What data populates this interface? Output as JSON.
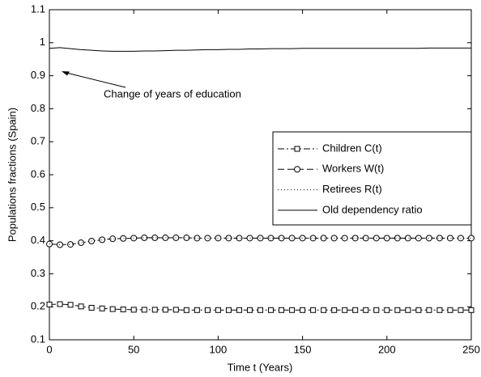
{
  "chart_data": {
    "type": "line",
    "xlabel": "Time t (Years)",
    "ylabel": "Populations fractions (Spain)",
    "annotation": "Change of years of education",
    "xlim": [
      0,
      250
    ],
    "xticks": [
      0,
      50,
      100,
      150,
      200,
      250
    ],
    "ylim": [
      0.1,
      1.1
    ],
    "yticks": [
      0.1,
      0.2,
      0.3,
      0.4,
      0.5,
      0.6,
      0.7,
      0.8,
      0.9,
      1,
      1.1
    ],
    "legend": "upper right",
    "x": [
      0,
      6.25,
      12.5,
      18.75,
      25,
      31.25,
      37.5,
      43.75,
      50,
      56.25,
      62.5,
      68.75,
      75,
      81.25,
      87.5,
      93.75,
      100,
      106.25,
      112.5,
      118.75,
      125,
      131.25,
      137.5,
      143.75,
      150,
      156.25,
      162.5,
      168.75,
      175,
      181.25,
      187.5,
      193.75,
      200,
      206.25,
      212.5,
      218.75,
      225,
      231.25,
      237.5,
      243.75,
      250
    ],
    "series": [
      {
        "name": "Children C(t)",
        "color": "#000000",
        "dash": "dashdot",
        "marker": "square",
        "values": [
          0.207,
          0.208,
          0.206,
          0.201,
          0.197,
          0.195,
          0.193,
          0.192,
          0.191,
          0.191,
          0.191,
          0.191,
          0.191,
          0.19,
          0.19,
          0.19,
          0.19,
          0.19,
          0.19,
          0.19,
          0.19,
          0.19,
          0.19,
          0.19,
          0.19,
          0.19,
          0.19,
          0.19,
          0.19,
          0.19,
          0.19,
          0.19,
          0.19,
          0.19,
          0.19,
          0.19,
          0.19,
          0.19,
          0.19,
          0.19,
          0.19
        ]
      },
      {
        "name": "Workers W(t)",
        "color": "#000000",
        "dash": "dashed",
        "marker": "circle",
        "values": [
          0.39,
          0.388,
          0.389,
          0.394,
          0.399,
          0.403,
          0.406,
          0.407,
          0.408,
          0.409,
          0.409,
          0.409,
          0.409,
          0.409,
          0.408,
          0.408,
          0.408,
          0.408,
          0.408,
          0.408,
          0.408,
          0.408,
          0.408,
          0.408,
          0.408,
          0.408,
          0.408,
          0.408,
          0.408,
          0.408,
          0.408,
          0.408,
          0.408,
          0.408,
          0.408,
          0.408,
          0.408,
          0.408,
          0.408,
          0.408,
          0.408
        ]
      },
      {
        "name": "Retirees R(t)",
        "color": "#000000",
        "dash": "dotted",
        "marker": "none",
        "values": [
          0.39,
          0.388,
          0.389,
          0.394,
          0.399,
          0.403,
          0.406,
          0.407,
          0.408,
          0.409,
          0.409,
          0.409,
          0.409,
          0.409,
          0.408,
          0.408,
          0.408,
          0.408,
          0.408,
          0.408,
          0.408,
          0.408,
          0.408,
          0.408,
          0.408,
          0.408,
          0.408,
          0.408,
          0.408,
          0.408,
          0.408,
          0.408,
          0.408,
          0.408,
          0.408,
          0.408,
          0.408,
          0.408,
          0.408,
          0.408,
          0.408
        ]
      },
      {
        "name": "Old dependency ratio",
        "color": "#000000",
        "dash": "solid",
        "marker": "none",
        "values": [
          0.983,
          0.985,
          0.982,
          0.979,
          0.977,
          0.975,
          0.974,
          0.974,
          0.974,
          0.975,
          0.975,
          0.976,
          0.977,
          0.977,
          0.978,
          0.979,
          0.979,
          0.98,
          0.98,
          0.981,
          0.981,
          0.982,
          0.982,
          0.982,
          0.983,
          0.983,
          0.983,
          0.983,
          0.983,
          0.983,
          0.983,
          0.983,
          0.983,
          0.983,
          0.983,
          0.983,
          0.984,
          0.984,
          0.984,
          0.984,
          0.984
        ]
      }
    ]
  }
}
